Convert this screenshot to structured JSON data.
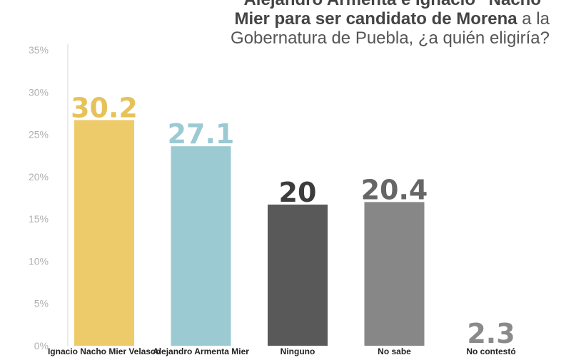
{
  "title": {
    "line1": "Alejandro Armenta e Ignacio “Nacho”",
    "line2_bold": "Mier  para ser candidato de Morena",
    "line2_rest": " a la",
    "line3": "Gobernatura de Puebla, ¿a quién eligiría?"
  },
  "chart_data": {
    "type": "bar",
    "categories": [
      "Ignacio Nacho Mier Velasco",
      "Alejandro Armenta Mier",
      "Ninguno",
      "No sabe",
      "No contestó"
    ],
    "values": [
      30.2,
      27.1,
      20,
      20.4,
      2.3
    ],
    "value_labels": [
      "30.2",
      "27.1",
      "20",
      "20.4",
      "2.3"
    ],
    "bar_values": [
      26.7,
      23.6,
      16.7,
      17.0,
      0
    ],
    "colors": [
      "#EDCB6A",
      "#9BCAD3",
      "#595959",
      "#878787",
      "#878787"
    ],
    "label_colors": [
      "#E6C25A",
      "#9BCAD3",
      "#3c3c3c",
      "#666666",
      "#8a8a8a"
    ],
    "yticks": [
      "0%",
      "5%",
      "10%",
      "15%",
      "20%",
      "25%",
      "30%",
      "35%"
    ],
    "ylim": [
      0,
      35
    ],
    "grid": false
  }
}
